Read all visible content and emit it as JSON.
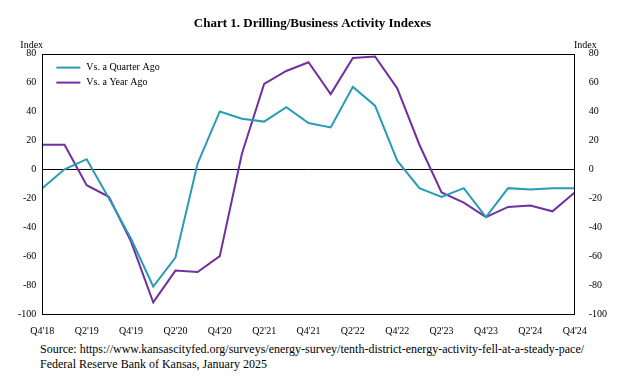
{
  "chart_data": {
    "type": "line",
    "title": "Chart 1. Drilling/Business Activity Indexes",
    "y_label": "Index",
    "y2_label": "Index",
    "categories": [
      "Q4'18",
      null,
      "Q2'19",
      null,
      "Q4'19",
      null,
      "Q2'20",
      null,
      "Q4'20",
      null,
      "Q2'21",
      null,
      "Q4'21",
      null,
      "Q2'22",
      null,
      "Q4'22",
      null,
      "Q2'23",
      null,
      "Q4'23",
      null,
      "Q2'24",
      null,
      "Q4'24"
    ],
    "series": [
      {
        "name": "Vs. a Quarter Ago",
        "color": "#2a9bb7",
        "line_style": "solid",
        "values": [
          -13,
          0,
          7,
          -20,
          -48,
          -81,
          -61,
          4,
          40,
          35,
          33,
          43,
          32,
          29,
          57,
          44,
          6,
          -13,
          -19,
          -13,
          -33,
          -13,
          -14,
          -13,
          -13
        ]
      },
      {
        "name": "Vs. a Year Ago",
        "color": "#7030a0",
        "line_style": "solid",
        "values": [
          17,
          17,
          -11,
          -19,
          -50,
          -92,
          -70,
          -71,
          -60,
          11,
          59,
          68,
          74,
          52,
          77,
          78,
          56,
          17,
          -16,
          -23,
          -33,
          -26,
          -25,
          -29,
          -16
        ]
      }
    ],
    "ylim": [
      -100,
      80
    ],
    "yticks": [
      -100,
      -80,
      -60,
      -40,
      -20,
      0,
      20,
      40,
      60,
      80
    ],
    "y2lim": [
      -100,
      80
    ],
    "y2ticks": [
      -100,
      -80,
      -60,
      -40,
      -20,
      0,
      20,
      40,
      60,
      80
    ],
    "grid": false,
    "legend": "upper left",
    "notes": [
      "Source: https://www.kansascityfed.org/surveys/energy-survey/tenth-district-energy-activity-fell-at-a-steady-pace/",
      "Federal Reserve Bank of Kansas, January 2025"
    ]
  }
}
